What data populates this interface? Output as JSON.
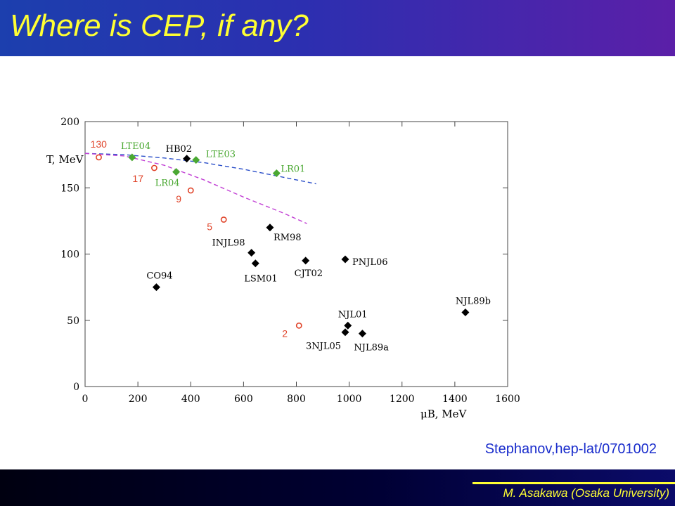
{
  "slide": {
    "title": "Where is CEP, if any?",
    "credit": "Stephanov,hep-lat/0701002",
    "author": "M. Asakawa (Osaka University)"
  },
  "colors": {
    "header_left": "#1c3fae",
    "header_right": "#5b1fa8",
    "title_text": "#ffff33",
    "credit_text": "#1a2dcc",
    "model_points": "#000000",
    "lattice_points": "#4aa832",
    "rhic_points": "#e0442a",
    "blue_curve": "#2b4fc9",
    "magenta_curve": "#c13fd4"
  },
  "chart_data": {
    "type": "scatter",
    "xlim": [
      0,
      1600
    ],
    "ylim": [
      0,
      200
    ],
    "xticks": [
      0,
      200,
      400,
      600,
      800,
      1000,
      1200,
      1400,
      1600
    ],
    "yticks": [
      0,
      50,
      100,
      150,
      200
    ],
    "xlabel": "μB, MeV",
    "ylabel": "T, MeV",
    "grid": false,
    "series": [
      {
        "group": "model",
        "marker": "diamond",
        "color": "#000000",
        "points": [
          {
            "label": "HB02",
            "x": 385,
            "y": 172
          },
          {
            "label": "RM98",
            "x": 700,
            "y": 120
          },
          {
            "label": "INJL98",
            "x": 630,
            "y": 101
          },
          {
            "label": "LSM01",
            "x": 645,
            "y": 93
          },
          {
            "label": "CJT02",
            "x": 835,
            "y": 95
          },
          {
            "label": "PNJL06",
            "x": 985,
            "y": 96
          },
          {
            "label": "CO94",
            "x": 270,
            "y": 75
          },
          {
            "label": "NJL89b",
            "x": 1440,
            "y": 56
          },
          {
            "label": "NJL01",
            "x": 995,
            "y": 46
          },
          {
            "label": "3NJL05",
            "x": 985,
            "y": 41
          },
          {
            "label": "NJL89a",
            "x": 1050,
            "y": 40
          }
        ]
      },
      {
        "group": "lattice",
        "marker": "diamond",
        "color": "#4aa832",
        "points": [
          {
            "label": "LTE04",
            "x": 178,
            "y": 173
          },
          {
            "label": "LTE03",
            "x": 420,
            "y": 171
          },
          {
            "label": "LR04",
            "x": 345,
            "y": 162
          },
          {
            "label": "LR01",
            "x": 725,
            "y": 161
          }
        ]
      },
      {
        "group": "rhic",
        "marker": "circle",
        "color": "#e0442a",
        "points": [
          {
            "label": "130",
            "x": 52,
            "y": 173
          },
          {
            "label": "17",
            "x": 262,
            "y": 165
          },
          {
            "label": "9",
            "x": 400,
            "y": 148
          },
          {
            "label": "5",
            "x": 525,
            "y": 126
          },
          {
            "label": "2",
            "x": 810,
            "y": 46
          }
        ]
      }
    ],
    "curves": [
      {
        "style": "dashed",
        "color": "#2b4fc9",
        "x": [
          0,
          150,
          300,
          450,
          600,
          750,
          875
        ],
        "y": [
          176,
          175,
          172.5,
          169,
          164,
          158,
          153
        ]
      },
      {
        "style": "dashed",
        "color": "#c13fd4",
        "x": [
          0,
          150,
          300,
          450,
          600,
          750,
          840
        ],
        "y": [
          176,
          174,
          167,
          156,
          143,
          131,
          123
        ]
      }
    ]
  }
}
